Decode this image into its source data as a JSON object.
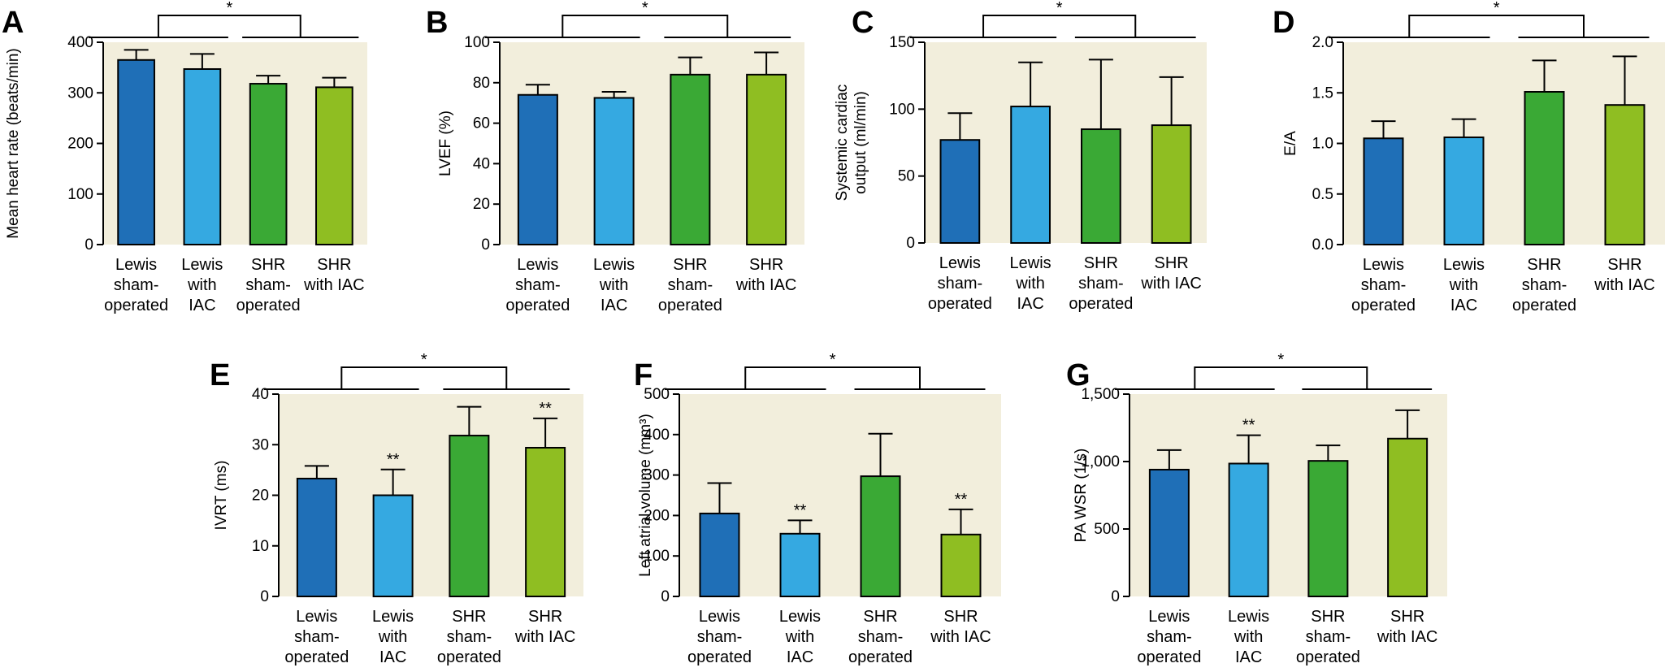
{
  "chart_data": [
    {
      "panel": "A",
      "type": "bar",
      "ylabel": "Mean heart rate (beats/min)",
      "ylim": [
        0,
        400
      ],
      "yticks": [
        "0",
        "100",
        "200",
        "300",
        "400"
      ],
      "categories": [
        [
          "Lewis",
          "sham-",
          "operated"
        ],
        [
          "Lewis",
          "with",
          "IAC"
        ],
        [
          "SHR",
          "sham-",
          "operated"
        ],
        [
          "SHR",
          "with IAC"
        ]
      ],
      "values": [
        365,
        347,
        318,
        311
      ],
      "errors": [
        20,
        30,
        16,
        19
      ],
      "bar_marks": [
        "",
        "",
        "",
        ""
      ],
      "group_bracket": "*"
    },
    {
      "panel": "B",
      "type": "bar",
      "ylabel": "LVEF (%)",
      "ylim": [
        0,
        100
      ],
      "yticks": [
        "0",
        "20",
        "40",
        "60",
        "80",
        "100"
      ],
      "categories": [
        [
          "Lewis",
          "sham-",
          "operated"
        ],
        [
          "Lewis",
          "with",
          "IAC"
        ],
        [
          "SHR",
          "sham-",
          "operated"
        ],
        [
          "SHR",
          "with IAC"
        ]
      ],
      "values": [
        74,
        72.5,
        84,
        84
      ],
      "errors": [
        5,
        3,
        8.5,
        11
      ],
      "bar_marks": [
        "",
        "",
        "",
        ""
      ],
      "group_bracket": "*"
    },
    {
      "panel": "C",
      "type": "bar",
      "ylabel": [
        "Systemic cardiac",
        "output (ml/min)"
      ],
      "ylim": [
        0,
        150
      ],
      "yticks": [
        "0",
        "50",
        "100",
        "150"
      ],
      "categories": [
        [
          "Lewis",
          "sham-",
          "operated"
        ],
        [
          "Lewis",
          "with",
          "IAC"
        ],
        [
          "SHR",
          "sham-",
          "operated"
        ],
        [
          "SHR",
          "with IAC"
        ]
      ],
      "values": [
        77,
        102,
        85,
        88
      ],
      "errors": [
        20,
        33,
        52,
        36
      ],
      "bar_marks": [
        "",
        "",
        "",
        ""
      ],
      "group_bracket": "*"
    },
    {
      "panel": "D",
      "type": "bar",
      "ylabel": "E/A",
      "ylim": [
        0,
        2
      ],
      "yticks": [
        "0.0",
        "0.5",
        "1.0",
        "1.5",
        "2.0"
      ],
      "categories": [
        [
          "Lewis",
          "sham-",
          "operated"
        ],
        [
          "Lewis",
          "with",
          "IAC"
        ],
        [
          "SHR",
          "sham-",
          "operated"
        ],
        [
          "SHR",
          "with IAC"
        ]
      ],
      "values": [
        1.05,
        1.06,
        1.51,
        1.38
      ],
      "errors": [
        0.17,
        0.18,
        0.31,
        0.48
      ],
      "bar_marks": [
        "",
        "",
        "",
        ""
      ],
      "group_bracket": "*"
    },
    {
      "panel": "E",
      "type": "bar",
      "ylabel": "IVRT (ms)",
      "ylim": [
        0,
        40
      ],
      "yticks": [
        "0",
        "10",
        "20",
        "30",
        "40"
      ],
      "categories": [
        [
          "Lewis",
          "sham-",
          "operated"
        ],
        [
          "Lewis",
          "with",
          "IAC"
        ],
        [
          "SHR",
          "sham-",
          "operated"
        ],
        [
          "SHR",
          "with IAC"
        ]
      ],
      "values": [
        23.3,
        20,
        31.8,
        29.4
      ],
      "errors": [
        2.5,
        5.1,
        5.7,
        5.8
      ],
      "bar_marks": [
        "",
        "**",
        "",
        "**"
      ],
      "group_bracket": "*"
    },
    {
      "panel": "F",
      "type": "bar",
      "ylabel": "Left atrial volume (mm³)",
      "ylim": [
        0,
        500
      ],
      "yticks": [
        "0",
        "100",
        "200",
        "300",
        "400",
        "500"
      ],
      "categories": [
        [
          "Lewis",
          "sham-",
          "operated"
        ],
        [
          "Lewis",
          "with",
          "IAC"
        ],
        [
          "SHR",
          "sham-",
          "operated"
        ],
        [
          "SHR",
          "with IAC"
        ]
      ],
      "values": [
        205,
        155,
        297,
        153
      ],
      "errors": [
        75,
        33,
        105,
        62
      ],
      "bar_marks": [
        "",
        "**",
        "",
        "**"
      ],
      "group_bracket": "*"
    },
    {
      "panel": "G",
      "type": "bar",
      "ylabel": "PA WSR (1/s)",
      "ylim": [
        0,
        1500
      ],
      "yticks": [
        "0",
        "500",
        "1,000",
        "1,500"
      ],
      "categories": [
        [
          "Lewis",
          "sham-",
          "operated"
        ],
        [
          "Lewis",
          "with",
          "IAC"
        ],
        [
          "SHR",
          "sham-",
          "operated"
        ],
        [
          "SHR",
          "with IAC"
        ]
      ],
      "values": [
        940,
        985,
        1005,
        1170
      ],
      "errors": [
        145,
        210,
        115,
        210
      ],
      "bar_marks": [
        "",
        "**",
        "",
        ""
      ],
      "group_bracket": "*"
    }
  ],
  "colors": {
    "plot_background": "#f2eedc",
    "bars": [
      "#1f6fb7",
      "#35a9e1",
      "#3aa935",
      "#8fbe22"
    ],
    "bar_outline": "#000000"
  }
}
